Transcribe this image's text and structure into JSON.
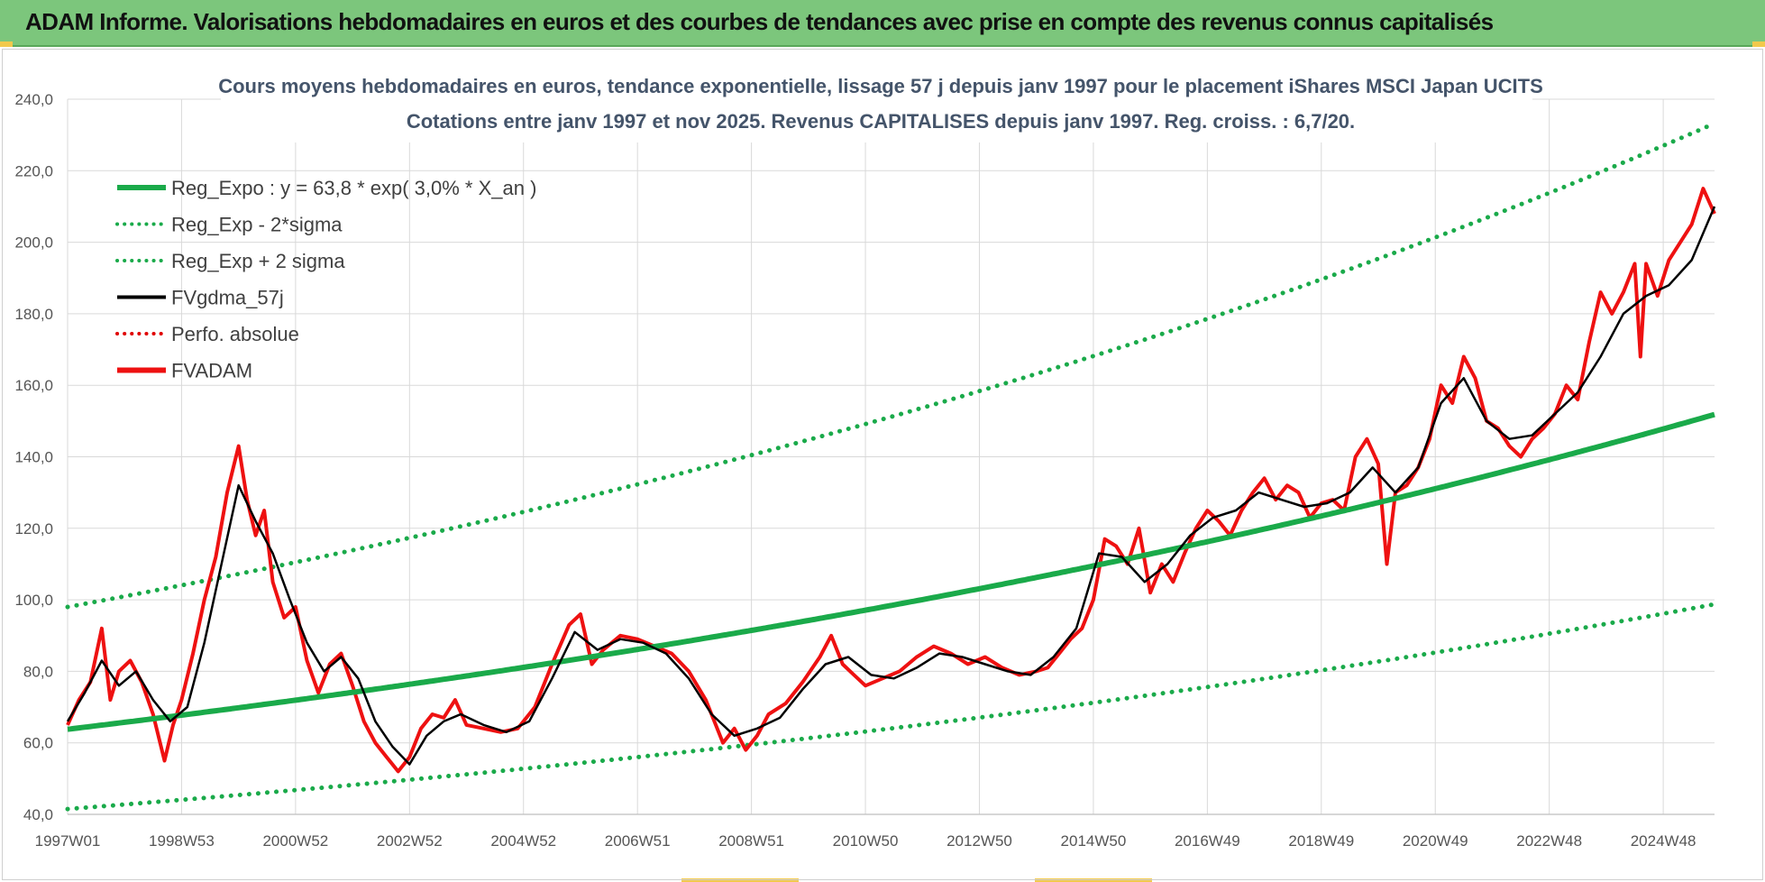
{
  "header": {
    "title": "ADAM Informe. Valorisations hebdomadaires en euros et des courbes de tendances avec prise en compte des revenus connus capitalisés"
  },
  "colors": {
    "header_bg": "#7cc67c",
    "reg_expo": "#1aaa4a",
    "sigma": "#1aaa4a",
    "fvgdma": "#000000",
    "perfo": "#e00000",
    "fvadam": "#ee1111",
    "grid": "#d9d9d9"
  },
  "chart_data": {
    "type": "line",
    "title": [
      "Cours moyens hebdomadaires en euros, tendance exponentielle, lissage 57 j depuis janv 1997 pour le placement iShares MSCI Japan UCITS",
      "Cotations entre janv 1997 et nov 2025. Revenus CAPITALISES depuis janv 1997. Reg. croiss. : 6,7/20."
    ],
    "xlabel": "",
    "ylabel": "",
    "xlim": [
      1997.0,
      2025.9
    ],
    "ylim": [
      40,
      240
    ],
    "ytick_values": [
      40,
      60,
      80,
      100,
      120,
      140,
      160,
      180,
      200,
      220,
      240
    ],
    "y_ticks": [
      "40,0",
      "60,0",
      "80,0",
      "100,0",
      "120,0",
      "140,0",
      "160,0",
      "180,0",
      "200,0",
      "220,0",
      "240,0"
    ],
    "xtick_values": [
      1997.0,
      1999.0,
      2001.0,
      2003.0,
      2005.0,
      2007.0,
      2009.0,
      2011.0,
      2013.0,
      2015.0,
      2017.0,
      2019.0,
      2021.0,
      2023.0,
      2025.0
    ],
    "x_ticks": [
      "1997W01",
      "1998W53",
      "2000W52",
      "2002W52",
      "2004W52",
      "2006W51",
      "2008W51",
      "2010W50",
      "2012W50",
      "2014W50",
      "2016W49",
      "2018W49",
      "2020W49",
      "2022W48",
      "2024W48"
    ],
    "grid": true,
    "legend_position": "top-left",
    "legend": [
      {
        "label": "Reg_Expo : y = 63,8 * exp( 3,0% *  X_an )",
        "style": "solid-thick",
        "color": "#1aaa4a"
      },
      {
        "label": "Reg_Exp - 2*sigma",
        "style": "dotted",
        "color": "#1aaa4a"
      },
      {
        "label": "Reg_Exp + 2 sigma",
        "style": "dotted",
        "color": "#1aaa4a"
      },
      {
        "label": "FVgdma_57j",
        "style": "solid",
        "color": "#000000"
      },
      {
        "label": "Perfo. absolue",
        "style": "dotted",
        "color": "#e00000"
      },
      {
        "label": "FVADAM",
        "style": "solid-thick",
        "color": "#ee1111"
      }
    ],
    "series": [
      {
        "name": "Reg_Expo",
        "type": "exponential",
        "a": 63.8,
        "rate": 0.03,
        "x0": 1997.0
      },
      {
        "name": "Reg_Exp - 2*sigma",
        "type": "exponential",
        "a": 41.5,
        "rate": 0.03,
        "x0": 1997.0
      },
      {
        "name": "Reg_Exp + 2 sigma",
        "type": "exponential",
        "a": 98.0,
        "rate": 0.03,
        "x0": 1997.0
      },
      {
        "name": "FVADAM",
        "x": [
          1997.0,
          1997.2,
          1997.4,
          1997.6,
          1997.75,
          1997.9,
          1998.1,
          1998.3,
          1998.5,
          1998.7,
          1998.85,
          1999.0,
          1999.2,
          1999.4,
          1999.6,
          1999.8,
          2000.0,
          2000.15,
          2000.3,
          2000.45,
          2000.6,
          2000.8,
          2001.0,
          2001.2,
          2001.4,
          2001.6,
          2001.8,
          2002.0,
          2002.2,
          2002.4,
          2002.6,
          2002.8,
          2003.0,
          2003.2,
          2003.4,
          2003.6,
          2003.8,
          2004.0,
          2004.3,
          2004.6,
          2004.9,
          2005.2,
          2005.5,
          2005.8,
          2006.0,
          2006.2,
          2006.4,
          2006.7,
          2007.0,
          2007.3,
          2007.6,
          2007.9,
          2008.2,
          2008.5,
          2008.7,
          2008.9,
          2009.1,
          2009.3,
          2009.6,
          2009.9,
          2010.2,
          2010.4,
          2010.6,
          2010.8,
          2011.0,
          2011.3,
          2011.6,
          2011.9,
          2012.2,
          2012.5,
          2012.8,
          2013.1,
          2013.4,
          2013.7,
          2014.0,
          2014.2,
          2014.4,
          2014.6,
          2014.8,
          2015.0,
          2015.2,
          2015.4,
          2015.6,
          2015.8,
          2016.0,
          2016.2,
          2016.4,
          2016.6,
          2016.8,
          2017.0,
          2017.2,
          2017.4,
          2017.6,
          2017.8,
          2018.0,
          2018.2,
          2018.4,
          2018.6,
          2018.8,
          2019.0,
          2019.2,
          2019.4,
          2019.6,
          2019.8,
          2020.0,
          2020.15,
          2020.3,
          2020.5,
          2020.7,
          2020.9,
          2021.1,
          2021.3,
          2021.5,
          2021.7,
          2021.9,
          2022.1,
          2022.3,
          2022.5,
          2022.7,
          2022.9,
          2023.1,
          2023.3,
          2023.5,
          2023.7,
          2023.9,
          2024.1,
          2024.3,
          2024.5,
          2024.6,
          2024.7,
          2024.9,
          2025.1,
          2025.3,
          2025.5,
          2025.7,
          2025.9
        ],
        "values": [
          65,
          72,
          77,
          92,
          72,
          80,
          83,
          77,
          68,
          55,
          65,
          72,
          85,
          100,
          112,
          130,
          143,
          128,
          118,
          125,
          105,
          95,
          98,
          83,
          74,
          82,
          85,
          76,
          66,
          60,
          56,
          52,
          56,
          64,
          68,
          67,
          72,
          65,
          64,
          63,
          64,
          70,
          82,
          93,
          96,
          82,
          86,
          90,
          89,
          87,
          85,
          80,
          72,
          60,
          64,
          58,
          62,
          68,
          71,
          77,
          84,
          90,
          82,
          79,
          76,
          78,
          80,
          84,
          87,
          85,
          82,
          84,
          81,
          79,
          80,
          81,
          85,
          89,
          92,
          100,
          117,
          115,
          110,
          120,
          102,
          110,
          105,
          113,
          120,
          125,
          122,
          118,
          125,
          130,
          134,
          128,
          132,
          130,
          123,
          127,
          128,
          125,
          140,
          145,
          138,
          110,
          130,
          132,
          137,
          145,
          160,
          155,
          168,
          162,
          150,
          148,
          143,
          140,
          145,
          148,
          152,
          160,
          156,
          172,
          186,
          180,
          186,
          194,
          168,
          194,
          185,
          195,
          200,
          205,
          215,
          208
        ]
      },
      {
        "name": "FVgdma_57j",
        "x": [
          1997.0,
          1997.3,
          1997.6,
          1997.9,
          1998.2,
          1998.5,
          1998.8,
          1999.1,
          1999.4,
          1999.7,
          2000.0,
          2000.3,
          2000.6,
          2000.9,
          2001.2,
          2001.5,
          2001.8,
          2002.1,
          2002.4,
          2002.7,
          2003.0,
          2003.3,
          2003.6,
          2003.9,
          2004.3,
          2004.7,
          2005.1,
          2005.5,
          2005.9,
          2006.3,
          2006.7,
          2007.1,
          2007.5,
          2007.9,
          2008.3,
          2008.7,
          2009.1,
          2009.5,
          2009.9,
          2010.3,
          2010.7,
          2011.1,
          2011.5,
          2011.9,
          2012.3,
          2012.7,
          2013.1,
          2013.5,
          2013.9,
          2014.3,
          2014.7,
          2015.1,
          2015.5,
          2015.9,
          2016.3,
          2016.7,
          2017.1,
          2017.5,
          2017.9,
          2018.3,
          2018.7,
          2019.1,
          2019.5,
          2019.9,
          2020.3,
          2020.7,
          2021.1,
          2021.5,
          2021.9,
          2022.3,
          2022.7,
          2023.1,
          2023.5,
          2023.9,
          2024.3,
          2024.7,
          2025.1,
          2025.5,
          2025.9
        ],
        "values": [
          66,
          74,
          83,
          76,
          80,
          72,
          66,
          70,
          88,
          110,
          132,
          122,
          113,
          100,
          88,
          80,
          84,
          78,
          66,
          59,
          54,
          62,
          66,
          68,
          65,
          63,
          66,
          78,
          91,
          86,
          89,
          88,
          85,
          78,
          68,
          62,
          64,
          67,
          75,
          82,
          84,
          79,
          78,
          81,
          85,
          84,
          82,
          80,
          79,
          84,
          92,
          113,
          112,
          105,
          110,
          118,
          123,
          125,
          130,
          128,
          126,
          127,
          130,
          137,
          130,
          137,
          155,
          162,
          150,
          145,
          146,
          152,
          158,
          168,
          180,
          185,
          188,
          195,
          210
        ]
      }
    ]
  }
}
